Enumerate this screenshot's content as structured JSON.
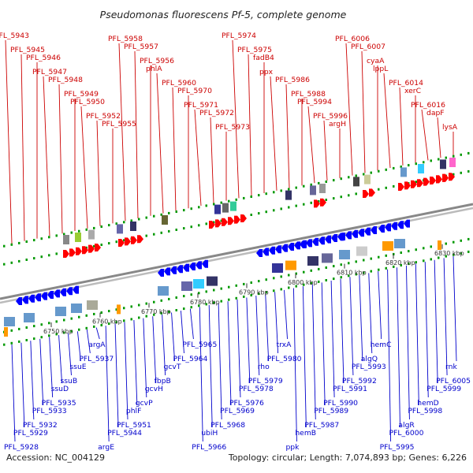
{
  "title": "Pseudomonas fluorescens Pf-5, complete genome",
  "footer": {
    "accession": "Accession: NC_004129",
    "summary": "Topology: circular; Length: 7,074,893 bp; Genes: 6,226"
  },
  "colors": {
    "forward_label": "#cc0000",
    "reverse_label": "#0000cc",
    "backbone": "#999999",
    "forward_arrow": "#ff0000",
    "reverse_arrow": "#0000ff",
    "tick_mark": "#009900"
  },
  "ruler": [
    "6750 kbp",
    "6760 kbp",
    "6770 kbp",
    "6780 kbp",
    "6790 kbp",
    "6800 kbp",
    "6810 kbp",
    "6820 kbp",
    "6830 kbp"
  ],
  "forward_genes": [
    "PFL_5943",
    "PFL_5945",
    "PFL_5946",
    "PFL_5947",
    "PFL_5948",
    "PFL_5949",
    "PFL_5950",
    "PFL_5952",
    "PFL_5955",
    "PFL_5958",
    "PFL_5957",
    "PFL_5956",
    "phlA",
    "PFL_5960",
    "PFL_5970",
    "PFL_5971",
    "PFL_5972",
    "PFL_5973",
    "PFL_5974",
    "PFL_5975",
    "fadB4",
    "ppx",
    "PFL_5986",
    "PFL_5988",
    "PFL_5994",
    "PFL_5996",
    "argH",
    "PFL_6006",
    "PFL_6007",
    "cyaA",
    "lppL",
    "PFL_6014",
    "xerC",
    "PFL_6016",
    "dapF",
    "lysA"
  ],
  "reverse_genes": [
    "PFL_5928",
    "PFL_5929",
    "PFL_5932",
    "PFL_5933",
    "PFL_5935",
    "ssuD",
    "ssuB",
    "ssuE",
    "PFL_5937",
    "argA",
    "argE",
    "PFL_5944",
    "PFL_5951",
    "phlF",
    "gcvP",
    "gcvH",
    "fbpB",
    "gcvT",
    "PFL_5964",
    "PFL_5965",
    "PFL_5966",
    "ubiH",
    "PFL_5968",
    "PFL_5969",
    "PFL_5976",
    "PFL_5978",
    "PFL_5979",
    "rho",
    "PFL_5980",
    "trxA",
    "ppk",
    "hemB",
    "PFL_5987",
    "PFL_5989",
    "PFL_5990",
    "PFL_5991",
    "PFL_5992",
    "PFL_5993",
    "algQ",
    "hemC",
    "PFL_5995",
    "PFL_6000",
    "algR",
    "PFL_5998",
    "hemD",
    "PFL_5999",
    "PFL_6005",
    "rnk"
  ]
}
